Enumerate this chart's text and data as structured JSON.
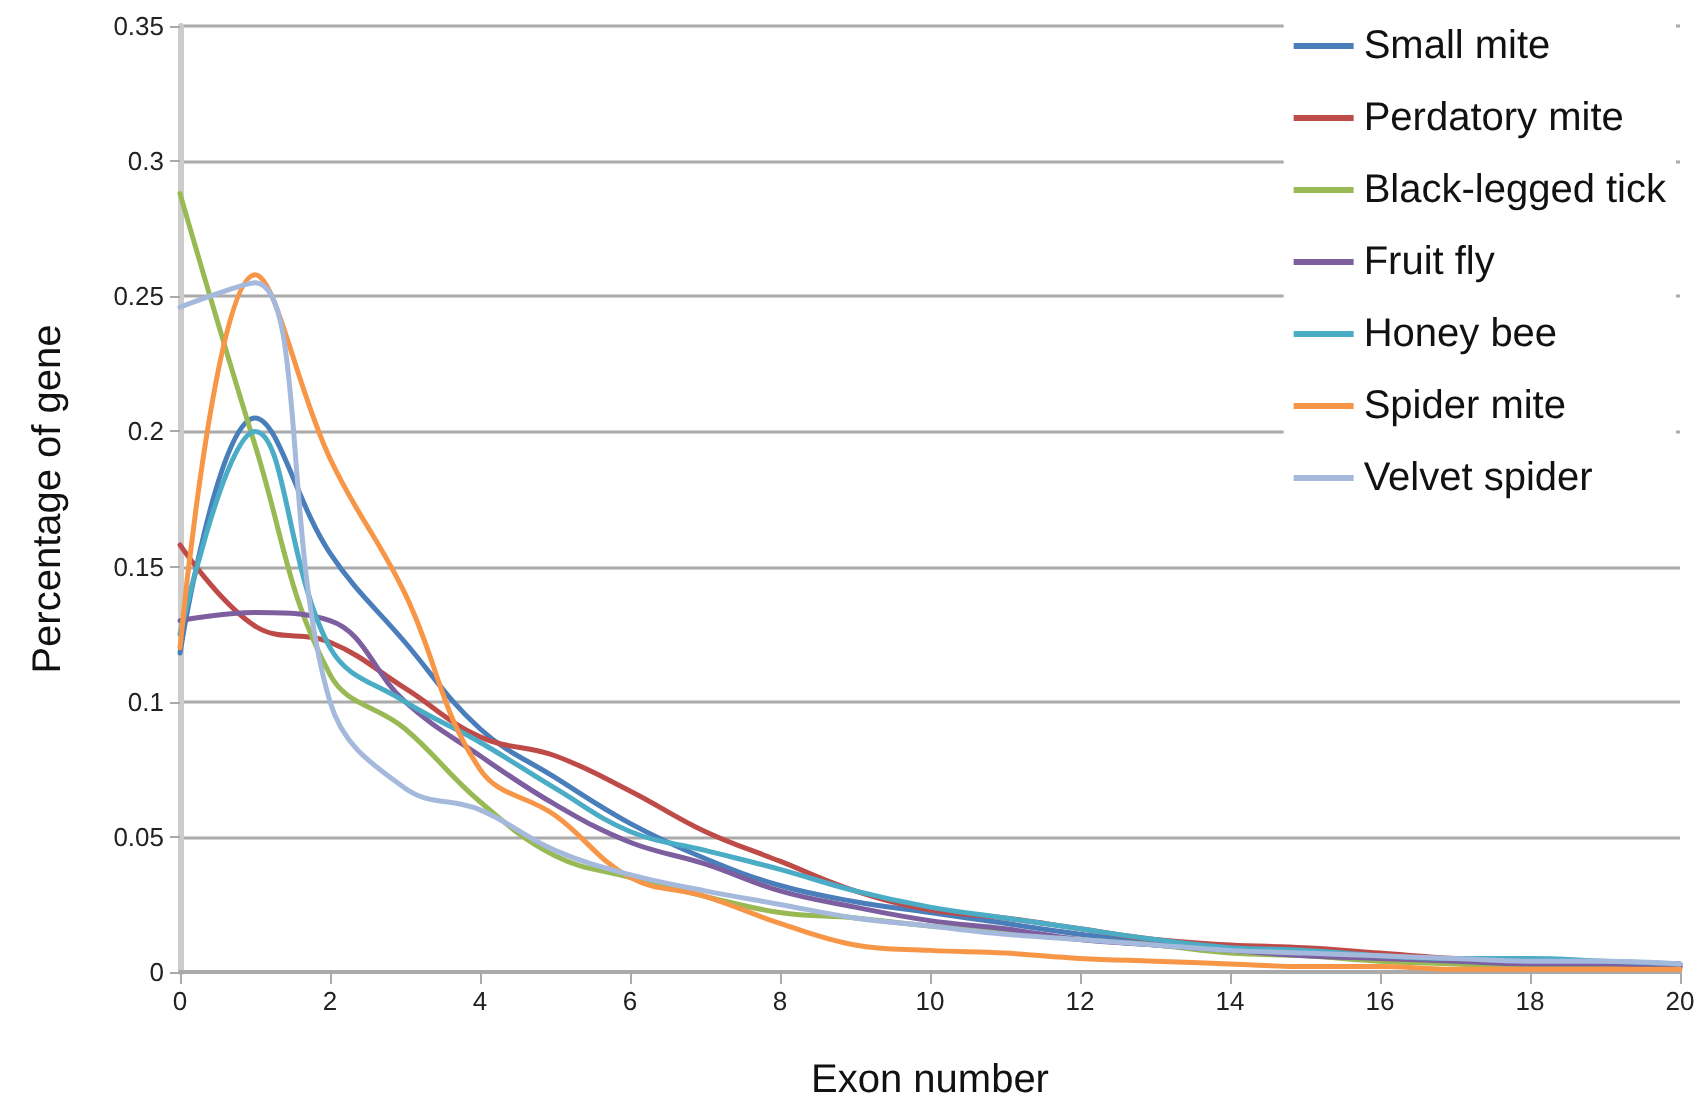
{
  "chart_data": {
    "type": "line",
    "xlabel": "Exon number",
    "ylabel": "Percentage of gene",
    "x": [
      0,
      1,
      2,
      3,
      4,
      5,
      6,
      7,
      8,
      9,
      10,
      11,
      12,
      13,
      14,
      15,
      16,
      17,
      18,
      19,
      20
    ],
    "xlim": [
      0,
      20
    ],
    "xticks": [
      0,
      2,
      4,
      6,
      8,
      10,
      12,
      14,
      16,
      18,
      20
    ],
    "ylim": [
      0,
      0.35
    ],
    "yticks": [
      0,
      0.05,
      0.1,
      0.15,
      0.2,
      0.25,
      0.3,
      0.35
    ],
    "grid": "y",
    "legend": "top right",
    "marker": "none",
    "line_style": "solid",
    "series": [
      {
        "name": "Small mite",
        "color": "#4a7ebb",
        "values": [
          0.118,
          0.205,
          0.155,
          0.122,
          0.09,
          0.072,
          0.055,
          0.042,
          0.032,
          0.026,
          0.022,
          0.018,
          0.014,
          0.011,
          0.009,
          0.007,
          0.005,
          0.004,
          0.003,
          0.003,
          0.002
        ]
      },
      {
        "name": "Perdatory mite",
        "color": "#be4b48",
        "values": [
          0.158,
          0.128,
          0.122,
          0.105,
          0.087,
          0.08,
          0.067,
          0.052,
          0.041,
          0.03,
          0.023,
          0.02,
          0.016,
          0.012,
          0.01,
          0.009,
          0.007,
          0.005,
          0.004,
          0.003,
          0.003
        ]
      },
      {
        "name": "Black-legged tick",
        "color": "#98b954",
        "values": [
          0.288,
          0.195,
          0.11,
          0.09,
          0.063,
          0.043,
          0.035,
          0.028,
          0.022,
          0.02,
          0.017,
          0.015,
          0.012,
          0.01,
          0.007,
          0.006,
          0.004,
          0.003,
          0.002,
          0.002,
          0.002
        ]
      },
      {
        "name": "Fruit fly",
        "color": "#7d5fa0",
        "values": [
          0.13,
          0.133,
          0.13,
          0.1,
          0.08,
          0.062,
          0.048,
          0.04,
          0.03,
          0.024,
          0.019,
          0.016,
          0.012,
          0.01,
          0.008,
          0.006,
          0.005,
          0.004,
          0.003,
          0.003,
          0.002
        ]
      },
      {
        "name": "Honey bee",
        "color": "#4bacc6",
        "values": [
          0.125,
          0.2,
          0.12,
          0.1,
          0.085,
          0.068,
          0.052,
          0.045,
          0.038,
          0.03,
          0.024,
          0.02,
          0.016,
          0.012,
          0.009,
          0.008,
          0.006,
          0.005,
          0.005,
          0.004,
          0.003
        ]
      },
      {
        "name": "Spider mite",
        "color": "#f79646",
        "values": [
          0.12,
          0.258,
          0.19,
          0.14,
          0.075,
          0.058,
          0.035,
          0.028,
          0.018,
          0.01,
          0.008,
          0.007,
          0.005,
          0.004,
          0.003,
          0.002,
          0.002,
          0.001,
          0.001,
          0.001,
          0.001
        ]
      },
      {
        "name": "Velvet spider",
        "color": "#a5b9dd",
        "values": [
          0.246,
          0.255,
          0.1,
          0.068,
          0.06,
          0.045,
          0.036,
          0.03,
          0.025,
          0.02,
          0.017,
          0.014,
          0.012,
          0.01,
          0.008,
          0.007,
          0.006,
          0.005,
          0.004,
          0.004,
          0.003
        ]
      }
    ]
  }
}
